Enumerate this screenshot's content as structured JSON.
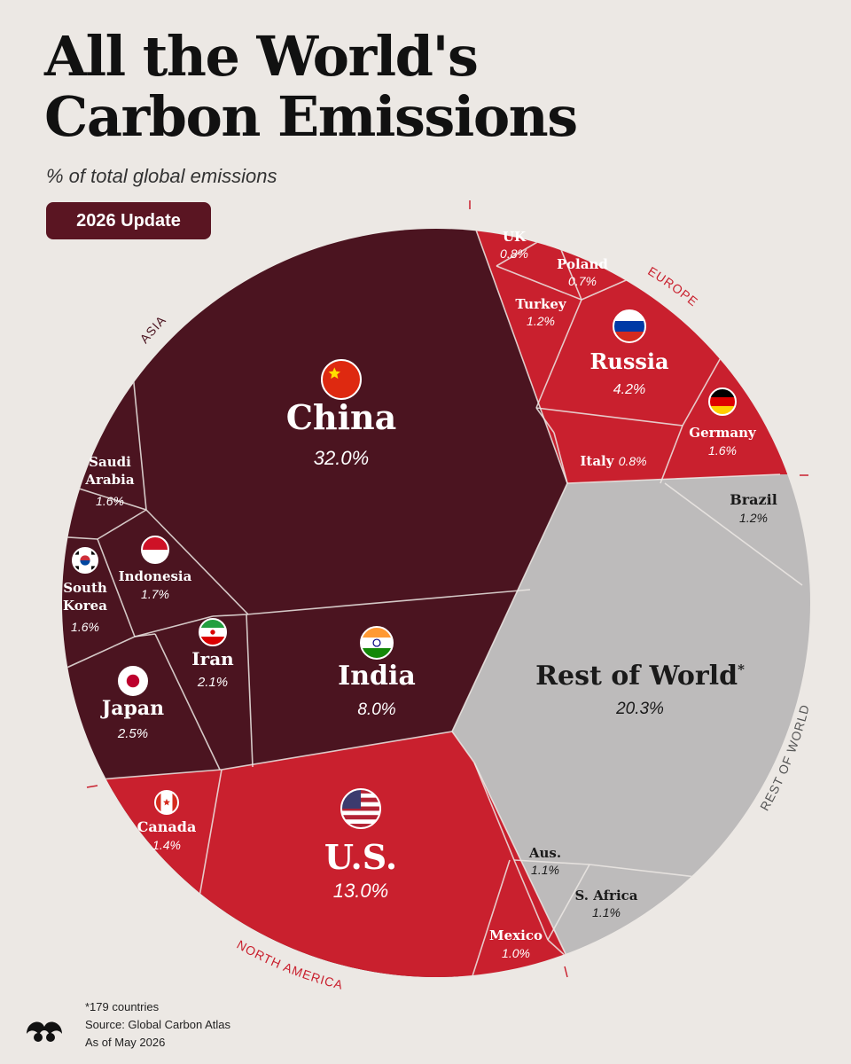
{
  "title": [
    "All the World's",
    "Carbon Emissions"
  ],
  "subtitle": "% of total global emissions",
  "badge": "2026 Update",
  "footer": {
    "note": "*179 countries",
    "source": "Source: Global Carbon Atlas",
    "date": "As of May 2026"
  },
  "colors": {
    "asia": "#4b1420",
    "europe": "#c9202e",
    "north_america": "#c9202e",
    "rest_of_world": "#bdbbbb",
    "background": "#ece8e4",
    "badge": "#5a1522"
  },
  "chart_data": {
    "type": "voronoi-treemap",
    "unit": "% of total global emissions",
    "groups": [
      {
        "name": "ASIA",
        "items": [
          {
            "name": "China",
            "value": 32.0,
            "label": "32.0%",
            "flag": "china-flag-icon"
          },
          {
            "name": "India",
            "value": 8.0,
            "label": "8.0%",
            "flag": "india-flag-icon"
          },
          {
            "name": "Japan",
            "value": 2.5,
            "label": "2.5%",
            "flag": "japan-flag-icon"
          },
          {
            "name": "Iran",
            "value": 2.1,
            "label": "2.1%",
            "flag": "iran-flag-icon"
          },
          {
            "name": "Indonesia",
            "value": 1.7,
            "label": "1.7%",
            "flag": "indonesia-flag-icon"
          },
          {
            "name": "South Korea",
            "value": 1.6,
            "label": "1.6%",
            "flag": "south-korea-flag-icon"
          },
          {
            "name": "Saudi Arabia",
            "value": 1.6,
            "label": "1.6%",
            "flag": ""
          }
        ]
      },
      {
        "name": "EUROPE",
        "items": [
          {
            "name": "Russia",
            "value": 4.2,
            "label": "4.2%",
            "flag": "russia-flag-icon"
          },
          {
            "name": "Germany",
            "value": 1.6,
            "label": "1.6%",
            "flag": "germany-flag-icon"
          },
          {
            "name": "Turkey",
            "value": 1.2,
            "label": "1.2%",
            "flag": ""
          },
          {
            "name": "UK",
            "value": 0.8,
            "label": "0.8%",
            "flag": ""
          },
          {
            "name": "Italy",
            "value": 0.8,
            "label": "0.8%",
            "flag": ""
          },
          {
            "name": "Poland",
            "value": 0.7,
            "label": "0.7%",
            "flag": ""
          }
        ]
      },
      {
        "name": "NORTH AMERICA",
        "items": [
          {
            "name": "U.S.",
            "value": 13.0,
            "label": "13.0%",
            "flag": "us-flag-icon"
          },
          {
            "name": "Canada",
            "value": 1.4,
            "label": "1.4%",
            "flag": "canada-flag-icon"
          },
          {
            "name": "Mexico",
            "value": 1.0,
            "label": "1.0%",
            "flag": ""
          }
        ]
      },
      {
        "name": "REST OF WORLD",
        "items": [
          {
            "name": "Rest of World",
            "value": 20.3,
            "label": "20.3%",
            "flag": "",
            "footnote": "*"
          },
          {
            "name": "Brazil",
            "value": 1.2,
            "label": "1.2%",
            "flag": ""
          },
          {
            "name": "Aus.",
            "value": 1.1,
            "label": "1.1%",
            "flag": ""
          },
          {
            "name": "S. Africa",
            "value": 1.1,
            "label": "1.1%",
            "flag": ""
          }
        ]
      }
    ]
  }
}
